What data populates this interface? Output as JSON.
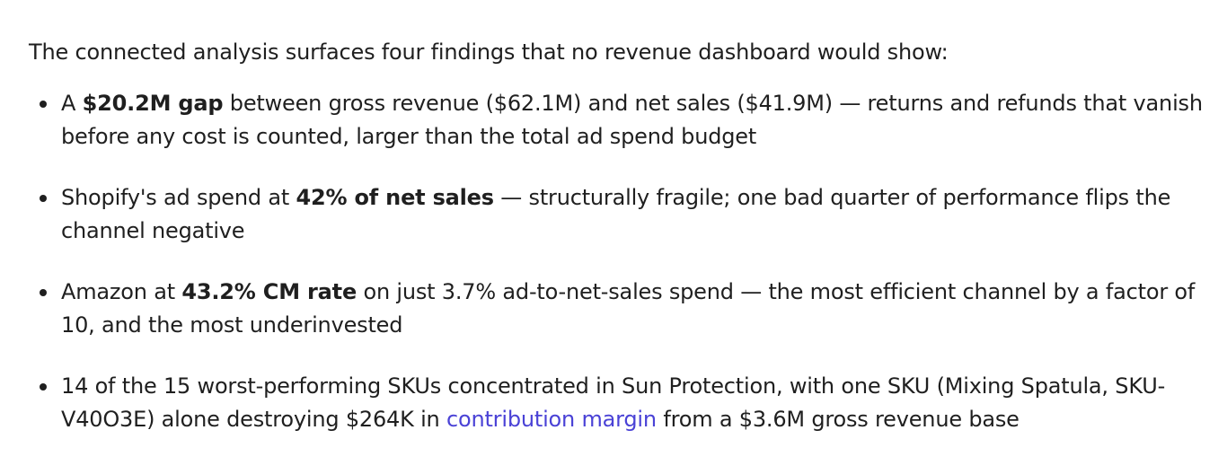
{
  "intro": "The connected analysis surfaces four findings that no revenue dashboard would show:",
  "findings": [
    {
      "pre": "A ",
      "bold": "$20.2M gap",
      "post": " between gross revenue ($62.1M) and net sales ($41.9M) — returns and refunds that vanish before any cost is counted, larger than the total ad spend budget"
    },
    {
      "pre": "Shopify's ad spend at ",
      "bold": "42% of net sales",
      "post": " — structurally fragile; one bad quarter of performance flips the channel negative"
    },
    {
      "pre": "Amazon at ",
      "bold": "43.2% CM rate",
      "post": " on just 3.7% ad-to-net-sales spend — the most efficient channel by a factor of 10, and the most underinvested"
    },
    {
      "pre": "14 of the 15 worst-performing SKUs concentrated in Sun Protection, with one SKU (Mixing Spatula, SKU-V40O3E) alone destroying $264K in ",
      "link": "contribution margin",
      "post": " from a $3.6M gross revenue base"
    }
  ]
}
